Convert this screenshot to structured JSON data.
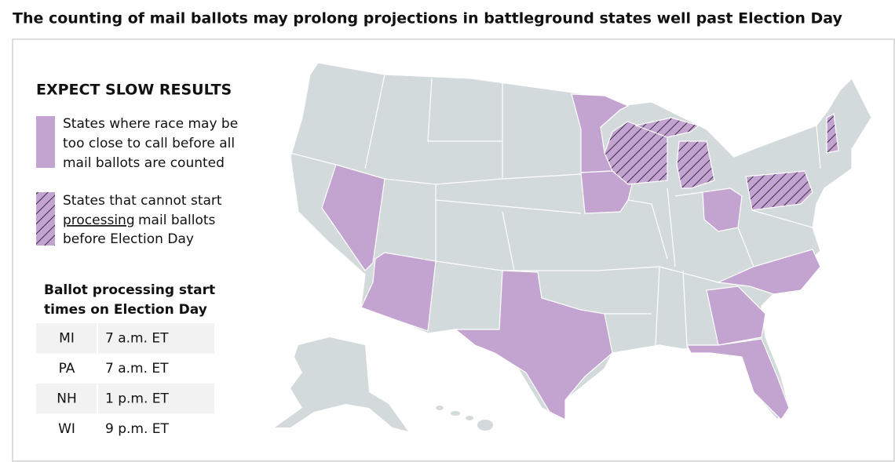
{
  "title": "The counting of mail ballots may prolong projections in battleground states well past Election Day",
  "legend": {
    "heading": "EXPECT SLOW RESULTS",
    "items": [
      {
        "lines": [
          "States where race may be",
          "too close to call before all",
          "mail ballots are counted"
        ]
      },
      {
        "lines": [
          "States that cannot start",
          "processing",
          "mail ballots",
          "before Election Day"
        ]
      }
    ]
  },
  "table": {
    "heading": [
      "Ballot processing start",
      "times on Election Day"
    ],
    "rows": [
      [
        "MI",
        "7 a.m. ET"
      ],
      [
        "PA",
        "7 a.m. ET"
      ],
      [
        "NH",
        "1 p.m. ET"
      ],
      [
        "WI",
        "9 p.m. ET"
      ]
    ]
  }
}
